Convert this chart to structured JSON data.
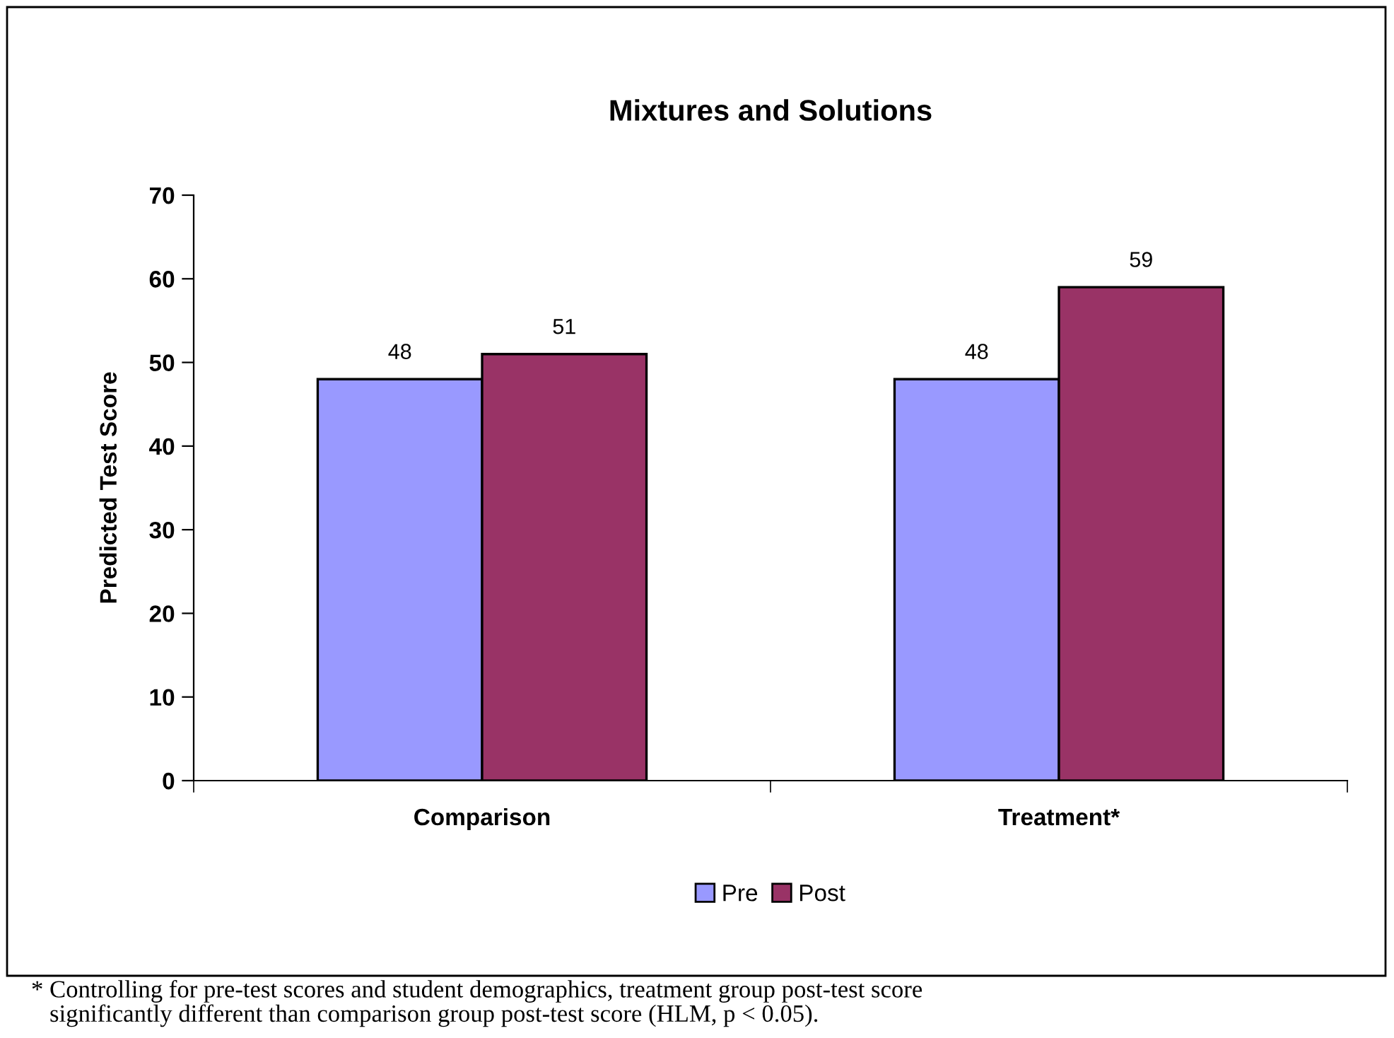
{
  "chart_data": {
    "type": "bar",
    "title": "Mixtures and Solutions",
    "ylabel": "Predicted Test Score",
    "categories": [
      "Comparison",
      "Treatment*"
    ],
    "series": [
      {
        "name": "Pre",
        "color": "#9999ff",
        "values": [
          48,
          48
        ]
      },
      {
        "name": "Post",
        "color": "#993366",
        "values": [
          51,
          59
        ]
      }
    ],
    "ylim": [
      0,
      70
    ],
    "yticks": [
      0,
      10,
      20,
      30,
      40,
      50,
      60,
      70
    ],
    "data_labels": true,
    "legend": "bottom",
    "grid": false,
    "annotations": [
      "* Controlling for pre-test scores and student demographics, treatment group post-test score\n   significantly different than comparison group post-test score (HLM, p < 0.05)."
    ]
  }
}
